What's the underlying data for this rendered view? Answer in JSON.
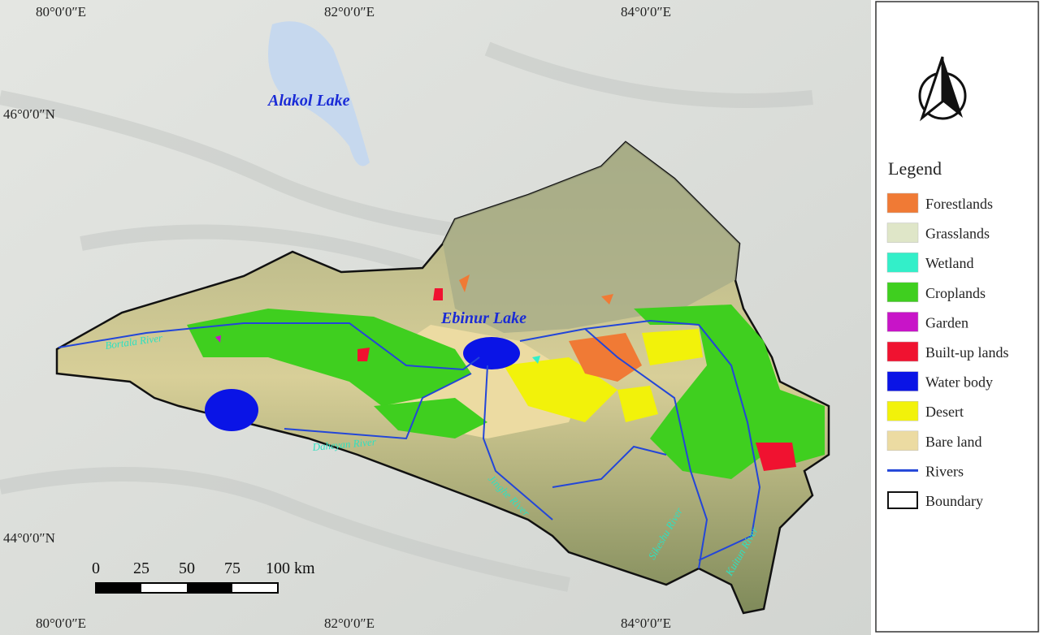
{
  "map": {
    "graticule": {
      "top": [
        "80°0′0″E",
        "82°0′0″E",
        "84°0′0″E"
      ],
      "bottom": [
        "80°0′0″E",
        "82°0′0″E",
        "84°0′0″E"
      ],
      "left": [
        "46°0′0″N",
        "44°0′0″N"
      ]
    },
    "lakes": [
      "Alakol Lake",
      "Ebinur Lake"
    ],
    "rivers": [
      "Bortala River",
      "Daheyan River",
      "Jinghe River",
      "Sikeshu River",
      "Kuitun River"
    ],
    "scale_bar": [
      "0",
      "25",
      "50",
      "75",
      "100 km"
    ]
  },
  "legend": {
    "title": "Legend",
    "items": [
      {
        "label": "Forestlands",
        "color": "#f07a35"
      },
      {
        "label": "Grasslands",
        "color": "#dfe6c8"
      },
      {
        "label": "Wetland",
        "color": "#33efc9"
      },
      {
        "label": "Croplands",
        "color": "#3fcf1f"
      },
      {
        "label": "Garden",
        "color": "#c814c8"
      },
      {
        "label": "Built-up lands",
        "color": "#f01230"
      },
      {
        "label": "Water body",
        "color": "#0a14e6"
      },
      {
        "label": "Desert",
        "color": "#f2f20a"
      },
      {
        "label": "Bare land",
        "color": "#ecdba2"
      },
      {
        "label": "Rivers",
        "color": "#2346d8"
      },
      {
        "label": "Boundary",
        "color": "#111111"
      }
    ]
  }
}
